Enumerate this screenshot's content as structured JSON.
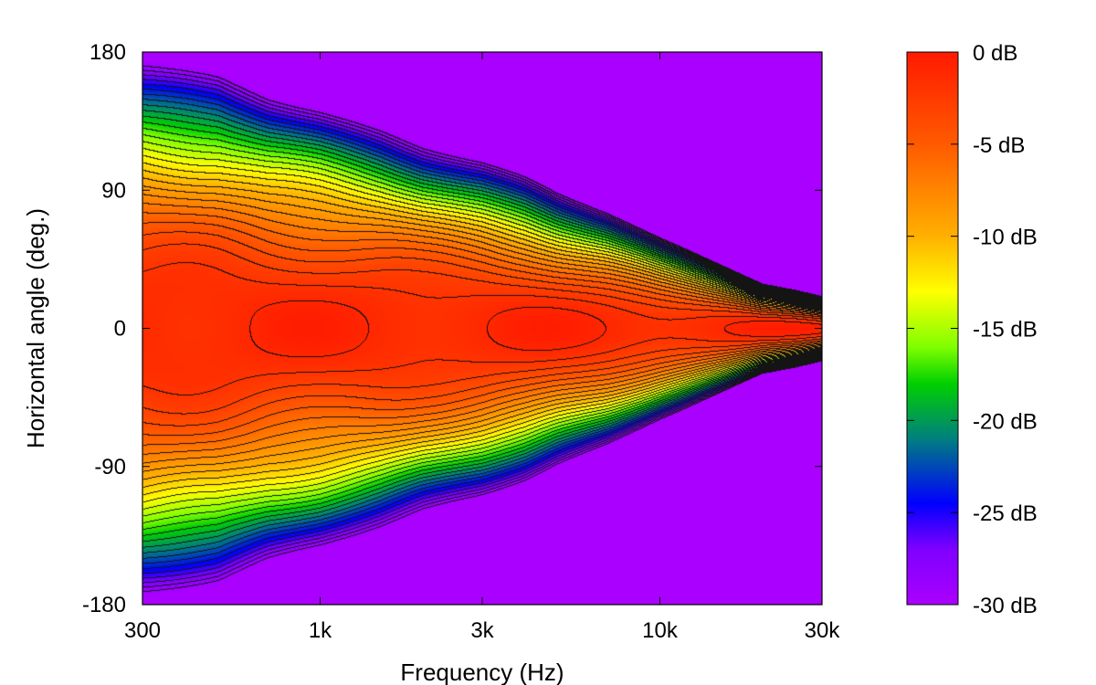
{
  "chart_data": {
    "type": "heatmap",
    "title": "",
    "xlabel": "Frequency (Hz)",
    "ylabel": "Horizontal angle (deg.)",
    "x_scale": "log",
    "xlim": [
      300,
      30000
    ],
    "ylim": [
      -180,
      180
    ],
    "x_ticks": [
      {
        "value": 300,
        "label": "300"
      },
      {
        "value": 1000,
        "label": "1k"
      },
      {
        "value": 3000,
        "label": "3k"
      },
      {
        "value": 10000,
        "label": "10k"
      },
      {
        "value": 30000,
        "label": "30k"
      }
    ],
    "y_ticks": [
      {
        "value": 180,
        "label": "180"
      },
      {
        "value": 90,
        "label": "90"
      },
      {
        "value": 0,
        "label": "0"
      },
      {
        "value": -90,
        "label": "-90"
      },
      {
        "value": -180,
        "label": "-180"
      }
    ],
    "colorbar": {
      "range_db": [
        -30,
        0
      ],
      "ticks": [
        {
          "value": 0,
          "label": "0 dB"
        },
        {
          "value": -5,
          "label": "-5 dB"
        },
        {
          "value": -10,
          "label": "-10 dB"
        },
        {
          "value": -15,
          "label": "-15 dB"
        },
        {
          "value": -20,
          "label": "-20 dB"
        },
        {
          "value": -25,
          "label": "-25 dB"
        },
        {
          "value": -30,
          "label": "-30 dB"
        }
      ],
      "stops": [
        {
          "value": 0,
          "color": "#ff1a00"
        },
        {
          "value": -5,
          "color": "#ff5a00"
        },
        {
          "value": -10,
          "color": "#ffb000"
        },
        {
          "value": -13,
          "color": "#ffff00"
        },
        {
          "value": -16,
          "color": "#80ff00"
        },
        {
          "value": -18,
          "color": "#00d000"
        },
        {
          "value": -21,
          "color": "#007f7f"
        },
        {
          "value": -24.5,
          "color": "#0000ff"
        },
        {
          "value": -27,
          "color": "#7f00ff"
        },
        {
          "value": -30,
          "color": "#aa00ff"
        }
      ]
    },
    "contour_step_db": 1,
    "beamwidth_profile": {
      "freq_hz": [
        300,
        500,
        700,
        1000,
        1500,
        2000,
        3000,
        4000,
        5000,
        7000,
        10000,
        15000,
        20000,
        25000,
        30000
      ],
      "minus6db_half_angle_deg": [
        82,
        78,
        72,
        68,
        62,
        57,
        52,
        47,
        42,
        36,
        28,
        20,
        14,
        12,
        10
      ]
    },
    "on_axis_max_db": -1
  }
}
